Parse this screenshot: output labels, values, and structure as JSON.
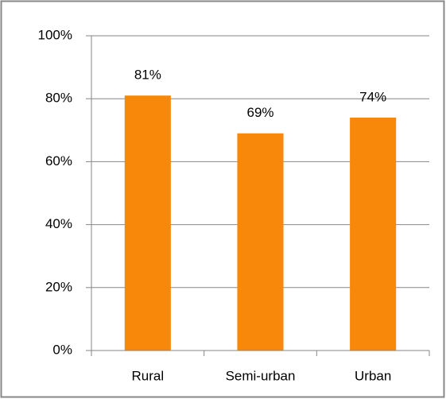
{
  "chart_data": {
    "type": "bar",
    "categories": [
      "Rural",
      "Semi-urban",
      "Urban"
    ],
    "values": [
      81,
      69,
      74
    ],
    "value_labels": [
      "81%",
      "69%",
      "74%"
    ],
    "color": "#f7880a",
    "ylim": [
      0,
      100
    ],
    "yticks": [
      {
        "value": 0,
        "label": "0%"
      },
      {
        "value": 20,
        "label": "20%"
      },
      {
        "value": 40,
        "label": "40%"
      },
      {
        "value": 60,
        "label": "60%"
      },
      {
        "value": 80,
        "label": "80%"
      },
      {
        "value": 100,
        "label": "100%"
      }
    ],
    "grid": true
  }
}
